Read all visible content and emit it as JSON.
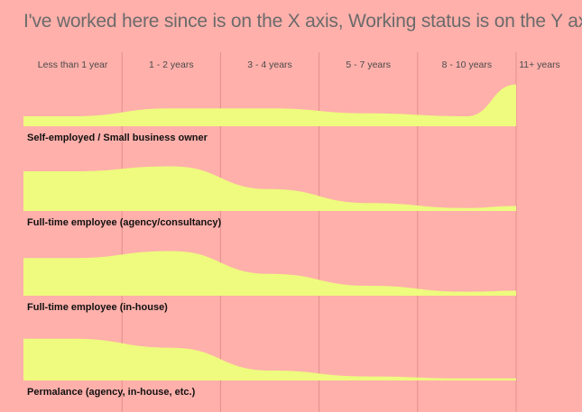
{
  "chart_data": {
    "type": "area",
    "title": "I've worked here since is on the X axis, Working status is on the Y axis",
    "categories": [
      "Less than 1 year",
      "1 - 2 years",
      "3 - 4 years",
      "5 - 7 years",
      "8 - 10 years",
      "11+ years"
    ],
    "series": [
      {
        "name": "Self-employed / Small business owner",
        "values": [
          10,
          18,
          18,
          13,
          10,
          42
        ]
      },
      {
        "name": "Full-time employee (agency/consultancy)",
        "values": [
          40,
          45,
          22,
          8,
          3,
          5
        ]
      },
      {
        "name": "Full-time employee (in-house)",
        "values": [
          38,
          45,
          22,
          10,
          4,
          5
        ]
      },
      {
        "name": "Permalance (agency, in-house, etc.)",
        "values": [
          42,
          33,
          10,
          4,
          2,
          2
        ]
      }
    ],
    "ylim": [
      0,
      50
    ],
    "grid": true,
    "colors": {
      "background": "#ffb0ab",
      "area": "#eefb7e",
      "grid": "#e48f8a"
    }
  }
}
